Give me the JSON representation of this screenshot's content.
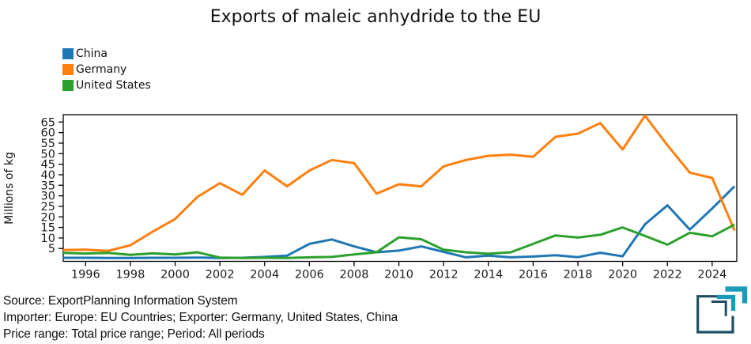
{
  "title": "Exports of maleic anhydride to the EU",
  "legend": {
    "items": [
      "China",
      "Germany",
      "United States"
    ]
  },
  "footer": {
    "line1": "Source: ExportPlanning Information System",
    "line2": "Importer: Europe: EU Countries; Exporter: Germany, United States, China",
    "line3": "Price range: Total price range; Period: All periods"
  },
  "logo": {
    "name": "exportplanning-logo",
    "teal": "#1a9cb9",
    "navy": "#1d4e63"
  },
  "chart_data": {
    "type": "line",
    "title": "Exports of maleic anhydride to the EU",
    "xlabel": "",
    "ylabel": "Millions of kg",
    "x": [
      1995,
      1996,
      1997,
      1998,
      1999,
      2000,
      2001,
      2002,
      2003,
      2004,
      2005,
      2006,
      2007,
      2008,
      2009,
      2010,
      2011,
      2012,
      2013,
      2014,
      2015,
      2016,
      2017,
      2018,
      2019,
      2020,
      2021,
      2022,
      2023,
      2024,
      2025
    ],
    "series": [
      {
        "name": "China",
        "color": "#1f77b4",
        "values": [
          0.6,
          0.6,
          0.5,
          0.5,
          0.6,
          0.6,
          0.7,
          0.5,
          0.6,
          1.0,
          1.6,
          7.2,
          9.3,
          6.0,
          3.2,
          4.0,
          6.0,
          3.4,
          0.8,
          1.6,
          0.8,
          1.2,
          1.8,
          0.9,
          3.0,
          1.3,
          16.5,
          25.5,
          14.0,
          24.0,
          34.5
        ]
      },
      {
        "name": "Germany",
        "color": "#ff7f0e",
        "values": [
          4.3,
          4.4,
          3.9,
          6.5,
          13.0,
          19.0,
          29.5,
          36.0,
          30.5,
          42.0,
          34.5,
          42.0,
          47.0,
          45.5,
          31.0,
          35.5,
          34.5,
          44.0,
          47.0,
          49.0,
          49.5,
          48.5,
          58.0,
          59.5,
          64.5,
          52.0,
          68.0,
          54.0,
          41.0,
          38.5,
          13.5
        ]
      },
      {
        "name": "United States",
        "color": "#2ca02c",
        "values": [
          2.9,
          2.6,
          2.9,
          2.0,
          2.7,
          2.2,
          3.2,
          0.7,
          0.5,
          0.6,
          0.5,
          0.8,
          1.0,
          2.2,
          3.2,
          10.3,
          9.4,
          4.4,
          3.2,
          2.5,
          3.2,
          7.2,
          11.2,
          10.2,
          11.5,
          15.0,
          11.0,
          6.8,
          12.5,
          10.8,
          16.3
        ]
      }
    ],
    "xticks": [
      1996,
      1998,
      2000,
      2002,
      2004,
      2006,
      2008,
      2010,
      2012,
      2014,
      2016,
      2018,
      2020,
      2022,
      2024
    ],
    "yticks": [
      5,
      10,
      15,
      20,
      25,
      30,
      35,
      40,
      45,
      50,
      55,
      60,
      65
    ],
    "xlim": [
      1995,
      2025.1
    ],
    "ylim": [
      -1.1,
      68.5
    ],
    "grid": false,
    "legend_position": "upper-left",
    "frame": "box"
  }
}
